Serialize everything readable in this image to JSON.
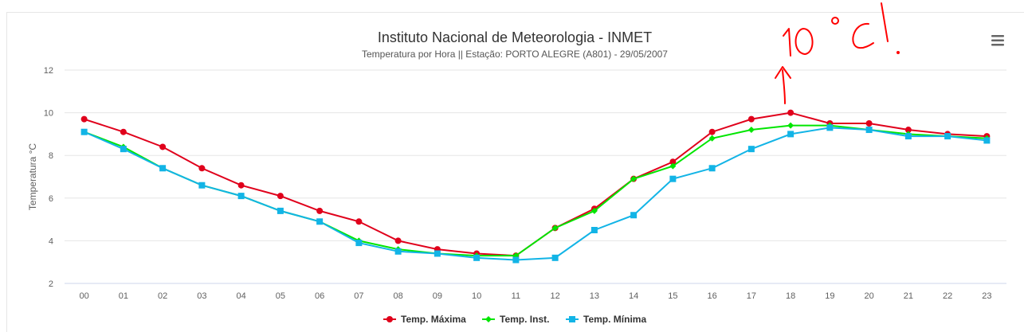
{
  "chart_data": {
    "type": "line",
    "title": "Instituto Nacional de Meteorologia - INMET",
    "subtitle": "Temperatura por Hora || Estação: PORTO ALEGRE (A801) - 29/05/2007",
    "ylabel": "Temperatura °C",
    "xlabel": "",
    "ylim": [
      2,
      12
    ],
    "yticks": [
      2,
      4,
      6,
      8,
      10,
      12
    ],
    "grid": true,
    "legend": "bottom-center",
    "categories": [
      "00",
      "01",
      "02",
      "03",
      "04",
      "05",
      "06",
      "07",
      "08",
      "09",
      "10",
      "11",
      "12",
      "13",
      "14",
      "15",
      "16",
      "17",
      "18",
      "19",
      "20",
      "21",
      "22",
      "23"
    ],
    "series": [
      {
        "name": "Temp. Máxima",
        "color": "#e0001b",
        "marker": "circle",
        "values": [
          9.7,
          9.1,
          8.4,
          7.4,
          6.6,
          6.1,
          5.4,
          4.9,
          4.0,
          3.6,
          3.4,
          3.3,
          4.6,
          5.5,
          6.9,
          7.7,
          9.1,
          9.7,
          10.0,
          9.5,
          9.5,
          9.2,
          9.0,
          8.9
        ]
      },
      {
        "name": "Temp. Inst.",
        "color": "#00e600",
        "marker": "diamond",
        "values": [
          9.1,
          8.4,
          7.4,
          6.6,
          6.1,
          5.4,
          4.9,
          4.0,
          3.6,
          3.4,
          3.3,
          3.3,
          4.6,
          5.4,
          6.9,
          7.5,
          8.8,
          9.2,
          9.4,
          9.4,
          9.2,
          9.0,
          8.9,
          8.8
        ]
      },
      {
        "name": "Temp. Mínima",
        "color": "#12b4e6",
        "marker": "square",
        "values": [
          9.1,
          8.3,
          7.4,
          6.6,
          6.1,
          5.4,
          4.9,
          3.9,
          3.5,
          3.4,
          3.2,
          3.1,
          3.2,
          4.5,
          5.2,
          6.9,
          7.4,
          8.3,
          9.0,
          9.3,
          9.2,
          8.9,
          8.9,
          8.7
        ]
      }
    ]
  },
  "menu": {
    "icon": "hamburger-menu-icon"
  },
  "annotation": {
    "text": "10°C!",
    "color": "#ff0000"
  }
}
